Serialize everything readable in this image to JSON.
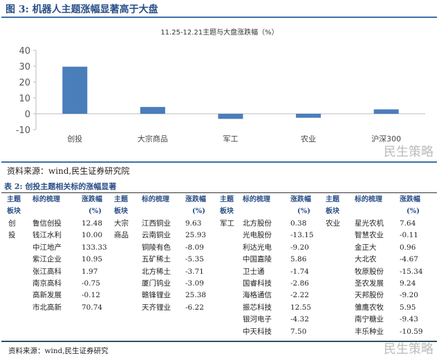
{
  "figure_title": "图 3: 机器人主题涨幅显著高于大盘",
  "figure_source": "资料来源：wind,民生证券研究院",
  "watermark": "民生策略",
  "chart_data": {
    "type": "bar",
    "title": "11.25-12.21主题与大盘涨跌幅（%）",
    "categories": [
      "创投",
      "大宗商品",
      "军工",
      "农业",
      "沪深300"
    ],
    "values": [
      29.7,
      4.3,
      -3.2,
      -2.5,
      2.8
    ],
    "yticks": [
      40,
      30,
      20,
      10,
      0,
      -10
    ],
    "ylim": [
      -10,
      40
    ],
    "xlabel": "",
    "ylabel": "",
    "color": "#4a7ebb"
  },
  "table": {
    "title": "表 2: 创投主题相关标的涨幅显著",
    "headers": {
      "theme1": "主题",
      "theme2": "板块",
      "stock": "标的梳理",
      "chg1": "涨跌幅",
      "chg2": "(%)"
    },
    "groups": [
      {
        "theme": [
          "创",
          "投"
        ],
        "rows": [
          [
            "鲁信创投",
            "12.48"
          ],
          [
            "钱江水利",
            "10.00"
          ],
          [
            "中江地产",
            "133.33"
          ],
          [
            "紫江企业",
            "10.95"
          ],
          [
            "张江高科",
            "1.97"
          ],
          [
            "南京高科",
            "-0.75"
          ],
          [
            "高新发展",
            "-0.12"
          ],
          [
            "市北高新",
            "70.74"
          ]
        ]
      },
      {
        "theme": [
          "大宗",
          "商品"
        ],
        "rows": [
          [
            "江西铜业",
            "9.63"
          ],
          [
            "云南铜业",
            "25.93"
          ],
          [
            "铜陵有色",
            "-8.09"
          ],
          [
            "五矿稀土",
            "-5.35"
          ],
          [
            "北方稀土",
            "-3.71"
          ],
          [
            "厦门钨业",
            "-3.09"
          ],
          [
            "赣锋锂业",
            "25.38"
          ],
          [
            "天齐锂业",
            "-6.22"
          ]
        ]
      },
      {
        "theme": [
          "军工"
        ],
        "rows": [
          [
            "北方股份",
            "0.38"
          ],
          [
            "光电股份",
            "-13.15"
          ],
          [
            "利达光电",
            "-9.20"
          ],
          [
            "中国嘉陵",
            "5.86"
          ],
          [
            "卫士通",
            "-1.74"
          ],
          [
            "国睿科技",
            "-2.86"
          ],
          [
            "海格通信",
            "-2.22"
          ],
          [
            "振芯科技",
            "12.55"
          ],
          [
            "银河电子",
            "-4.32"
          ],
          [
            "中天科技",
            "7.50"
          ]
        ]
      },
      {
        "theme": [
          "农业"
        ],
        "rows": [
          [
            "星光农机",
            "7.64"
          ],
          [
            "智慧农业",
            "-0.11"
          ],
          [
            "金正大",
            "0.96"
          ],
          [
            "大北农",
            "-4.67"
          ],
          [
            "牧原股份",
            "-15.34"
          ],
          [
            "圣农发展",
            "9.24"
          ],
          [
            "天邦股份",
            "-9.20"
          ],
          [
            "雏鹰农牧",
            "5.95"
          ],
          [
            "南宁糖业",
            "-9.43"
          ],
          [
            "丰乐种业",
            "-10.59"
          ]
        ]
      }
    ],
    "source": "资料来源：wind,民生证券研究"
  }
}
